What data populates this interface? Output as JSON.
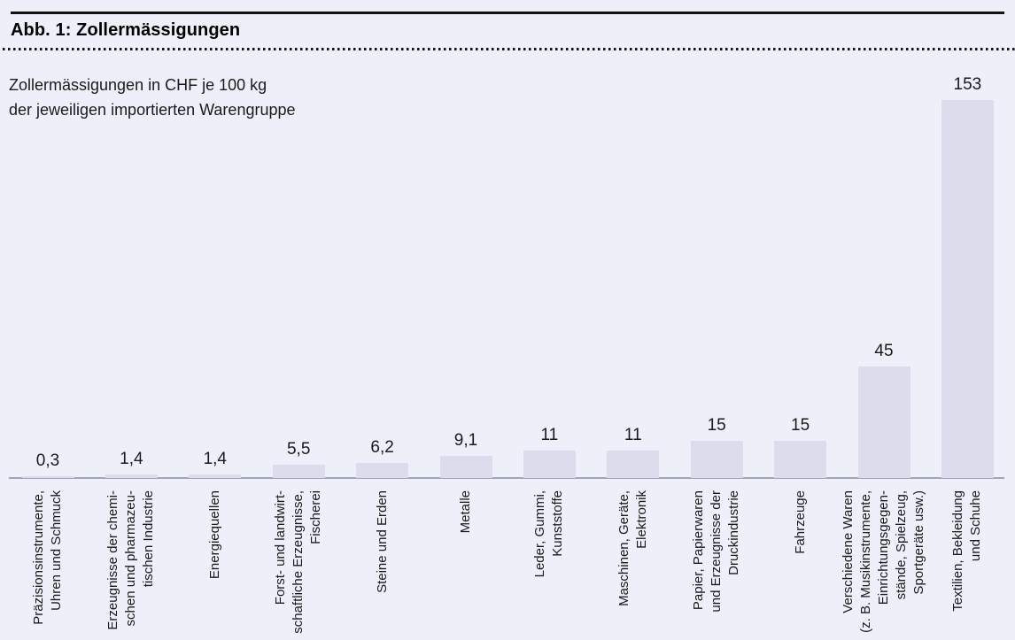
{
  "figure": {
    "title": "Abb. 1: Zollermässigungen"
  },
  "chart_data": {
    "type": "bar",
    "title": "Abb. 1: Zollermässigungen",
    "subtitle_lines": [
      "Zollermässigungen in CHF je 100 kg",
      "der jeweiligen importierten Warengruppe"
    ],
    "categories": [
      "Präzisionsinstrumente, Uhren und Schmuck",
      "Erzeugnisse der chemischen und pharmazeutischen Industrie",
      "Energiequellen",
      "Forst- und landwirtschaftliche Erzeugnisse, Fischerei",
      "Steine und Erden",
      "Metalle",
      "Leder, Gummi, Kunststoffe",
      "Maschinen, Geräte, Elektronik",
      "Papier, Papierwaren und Erzeugnisse der Druckindustrie",
      "Fahrzeuge",
      "Verschiedene Waren (z. B. Musikinstrumente, Einrichtungsgegenstände, Spielzeug, Sportgeräte usw.)",
      "Textilien, Bekleidung und Schuhe"
    ],
    "category_label_lines": [
      [
        "Präzisionsinstrumente,",
        "Uhren und Schmuck"
      ],
      [
        "Erzeugnisse der chemi-",
        "schen und pharmazeu-",
        "tischen Industrie"
      ],
      [
        "Energiequellen"
      ],
      [
        "Forst- und landwirt-",
        "schaftliche Erzeugnisse,",
        "Fischerei"
      ],
      [
        "Steine und Erden"
      ],
      [
        "Metalle"
      ],
      [
        "Leder, Gummi,",
        "Kunststoffe"
      ],
      [
        "Maschinen, Geräte,",
        "Elektronik"
      ],
      [
        "Papier, Papierwaren",
        "und Erzeugnisse der",
        "Druckindustrie"
      ],
      [
        "Fahrzeuge"
      ],
      [
        "Verschiedene Waren",
        "(z. B. Musikinstrumente,",
        "Einrichtungsgegen-",
        "stände, Spielzeug,",
        "Sportgeräte usw.)"
      ],
      [
        "Textilien, Bekleidung",
        "und Schuhe"
      ]
    ],
    "values": [
      0.3,
      1.4,
      1.4,
      5.5,
      6.2,
      9.1,
      11,
      11,
      15,
      15,
      45,
      153
    ],
    "value_labels": [
      "0,3",
      "1,4",
      "1,4",
      "5,5",
      "6,2",
      "9,1",
      "11",
      "11",
      "15",
      "15",
      "45",
      "153"
    ],
    "xlabel": "",
    "ylabel": "",
    "ylim": [
      0,
      160
    ],
    "grid": false,
    "y_axis_visible": false,
    "bar_value_labels_shown": true,
    "legend": "none",
    "colors": {
      "background": "#edf0f8",
      "bar": "#dbddec",
      "axis_line": "#9fa4ba",
      "rule": "#111111",
      "text": "#1a1a1a"
    }
  }
}
